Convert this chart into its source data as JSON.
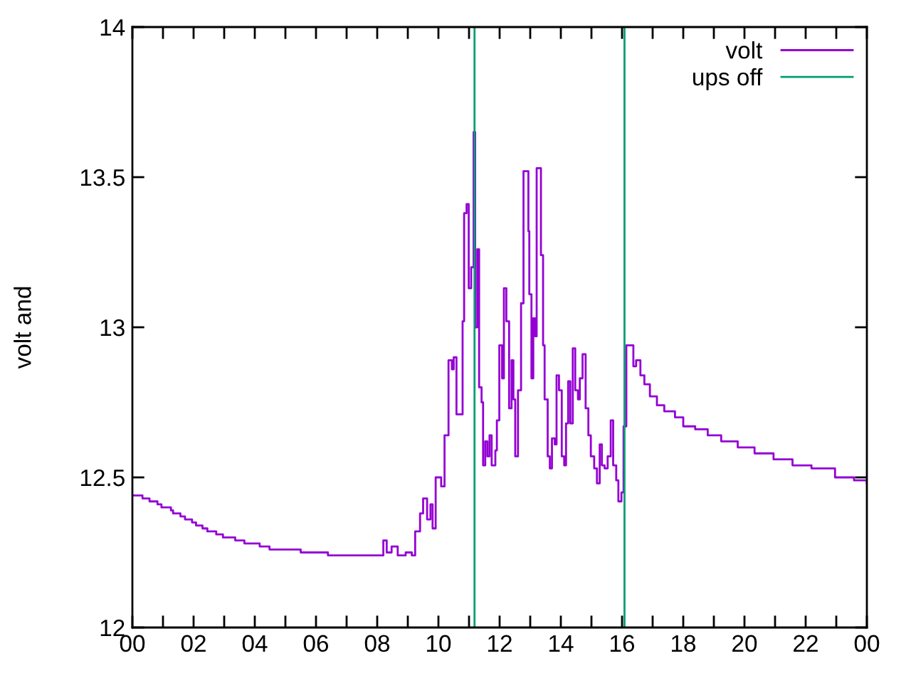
{
  "chart_data": {
    "type": "step",
    "ylabel": "volt and",
    "xlim": [
      0,
      24
    ],
    "ylim": [
      12,
      14
    ],
    "xticks": [
      {
        "value": 0,
        "label": "00"
      },
      {
        "value": 1,
        "label": null
      },
      {
        "value": 2,
        "label": "02"
      },
      {
        "value": 3,
        "label": null
      },
      {
        "value": 4,
        "label": "04"
      },
      {
        "value": 5,
        "label": null
      },
      {
        "value": 6,
        "label": "06"
      },
      {
        "value": 7,
        "label": null
      },
      {
        "value": 8,
        "label": "08"
      },
      {
        "value": 9,
        "label": null
      },
      {
        "value": 10,
        "label": "10"
      },
      {
        "value": 11,
        "label": null
      },
      {
        "value": 12,
        "label": "12"
      },
      {
        "value": 13,
        "label": null
      },
      {
        "value": 14,
        "label": "14"
      },
      {
        "value": 15,
        "label": null
      },
      {
        "value": 16,
        "label": "16"
      },
      {
        "value": 17,
        "label": null
      },
      {
        "value": 18,
        "label": "18"
      },
      {
        "value": 19,
        "label": null
      },
      {
        "value": 20,
        "label": "20"
      },
      {
        "value": 21,
        "label": null
      },
      {
        "value": 22,
        "label": "22"
      },
      {
        "value": 23,
        "label": null
      },
      {
        "value": 24,
        "label": "00"
      }
    ],
    "yticks": [
      12,
      12.5,
      13,
      13.5,
      14
    ],
    "grid": false,
    "legend": "top right",
    "marker": "none",
    "line_style": "solid",
    "series": [
      {
        "name": "volt",
        "color": "#9400d3",
        "x": [
          0,
          0.33,
          0.56,
          0.82,
          0.95,
          1.26,
          1.33,
          1.57,
          1.72,
          1.95,
          2.08,
          2.29,
          2.45,
          2.74,
          2.96,
          3.36,
          3.66,
          4.16,
          4.48,
          5.5,
          6.39,
          8.11,
          8.2,
          8.31,
          8.47,
          8.67,
          8.93,
          9.13,
          9.24,
          9.4,
          9.5,
          9.63,
          9.74,
          9.81,
          9.91,
          10.09,
          10.2,
          10.33,
          10.44,
          10.5,
          10.59,
          10.72,
          10.79,
          10.84,
          10.92,
          10.99,
          11.07,
          11.15,
          11.2,
          11.27,
          11.33,
          11.41,
          11.46,
          11.53,
          11.6,
          11.67,
          11.74,
          11.86,
          11.91,
          11.99,
          12.08,
          12.14,
          12.22,
          12.31,
          12.39,
          12.45,
          12.51,
          12.6,
          12.7,
          12.78,
          12.88,
          12.94,
          12.97,
          13.04,
          13.1,
          13.16,
          13.21,
          13.32,
          13.35,
          13.42,
          13.47,
          13.57,
          13.64,
          13.71,
          13.8,
          13.86,
          13.94,
          14.03,
          14.11,
          14.17,
          14.24,
          14.31,
          14.39,
          14.47,
          14.56,
          14.62,
          14.71,
          14.81,
          14.9,
          14.98,
          15.09,
          15.18,
          15.27,
          15.34,
          15.43,
          15.53,
          15.63,
          15.71,
          15.81,
          15.88,
          15.98,
          16.05,
          16.14,
          16.37,
          16.46,
          16.6,
          16.73,
          16.91,
          17.14,
          17.38,
          17.73,
          18.0,
          18.39,
          18.8,
          19.24,
          19.78,
          20.33,
          20.95,
          21.57,
          22.19,
          22.96,
          23.58,
          24
        ],
        "values": [
          12.44,
          12.43,
          12.42,
          12.41,
          12.4,
          12.39,
          12.38,
          12.37,
          12.36,
          12.35,
          12.34,
          12.33,
          12.32,
          12.31,
          12.3,
          12.29,
          12.28,
          12.27,
          12.26,
          12.25,
          12.24,
          12.24,
          12.29,
          12.25,
          12.27,
          12.24,
          12.25,
          12.24,
          12.32,
          12.38,
          12.43,
          12.36,
          12.41,
          12.33,
          12.5,
          12.47,
          12.64,
          12.89,
          12.86,
          12.9,
          12.71,
          12.71,
          13.02,
          13.38,
          13.41,
          13.13,
          13.2,
          13.65,
          13.0,
          13.26,
          12.8,
          12.75,
          12.54,
          12.62,
          12.57,
          12.64,
          12.54,
          12.59,
          12.69,
          12.94,
          12.83,
          13.13,
          13.02,
          12.73,
          12.89,
          12.76,
          12.57,
          12.79,
          13.08,
          13.52,
          13.52,
          13.32,
          13.11,
          12.83,
          13.03,
          12.97,
          13.53,
          13.53,
          13.24,
          12.94,
          12.76,
          12.57,
          12.53,
          12.63,
          12.61,
          12.84,
          12.79,
          12.57,
          12.54,
          12.68,
          12.82,
          12.68,
          12.93,
          12.79,
          12.76,
          12.83,
          12.91,
          12.73,
          12.64,
          12.57,
          12.53,
          12.48,
          12.61,
          12.54,
          12.53,
          12.57,
          12.69,
          12.54,
          12.49,
          12.42,
          12.45,
          12.67,
          12.94,
          12.87,
          12.89,
          12.84,
          12.81,
          12.77,
          12.74,
          12.72,
          12.7,
          12.67,
          12.66,
          12.64,
          12.62,
          12.6,
          12.58,
          12.56,
          12.54,
          12.53,
          12.5,
          12.49,
          12.48
        ]
      },
      {
        "name": "ups off",
        "color": "#009e73",
        "type": "line",
        "x": [
          11.18,
          11.18
        ],
        "values": [
          12,
          14
        ]
      },
      {
        "color": "#009e73",
        "type": "line",
        "x": [
          16.08,
          16.08
        ],
        "values": [
          14,
          12
        ]
      }
    ]
  }
}
